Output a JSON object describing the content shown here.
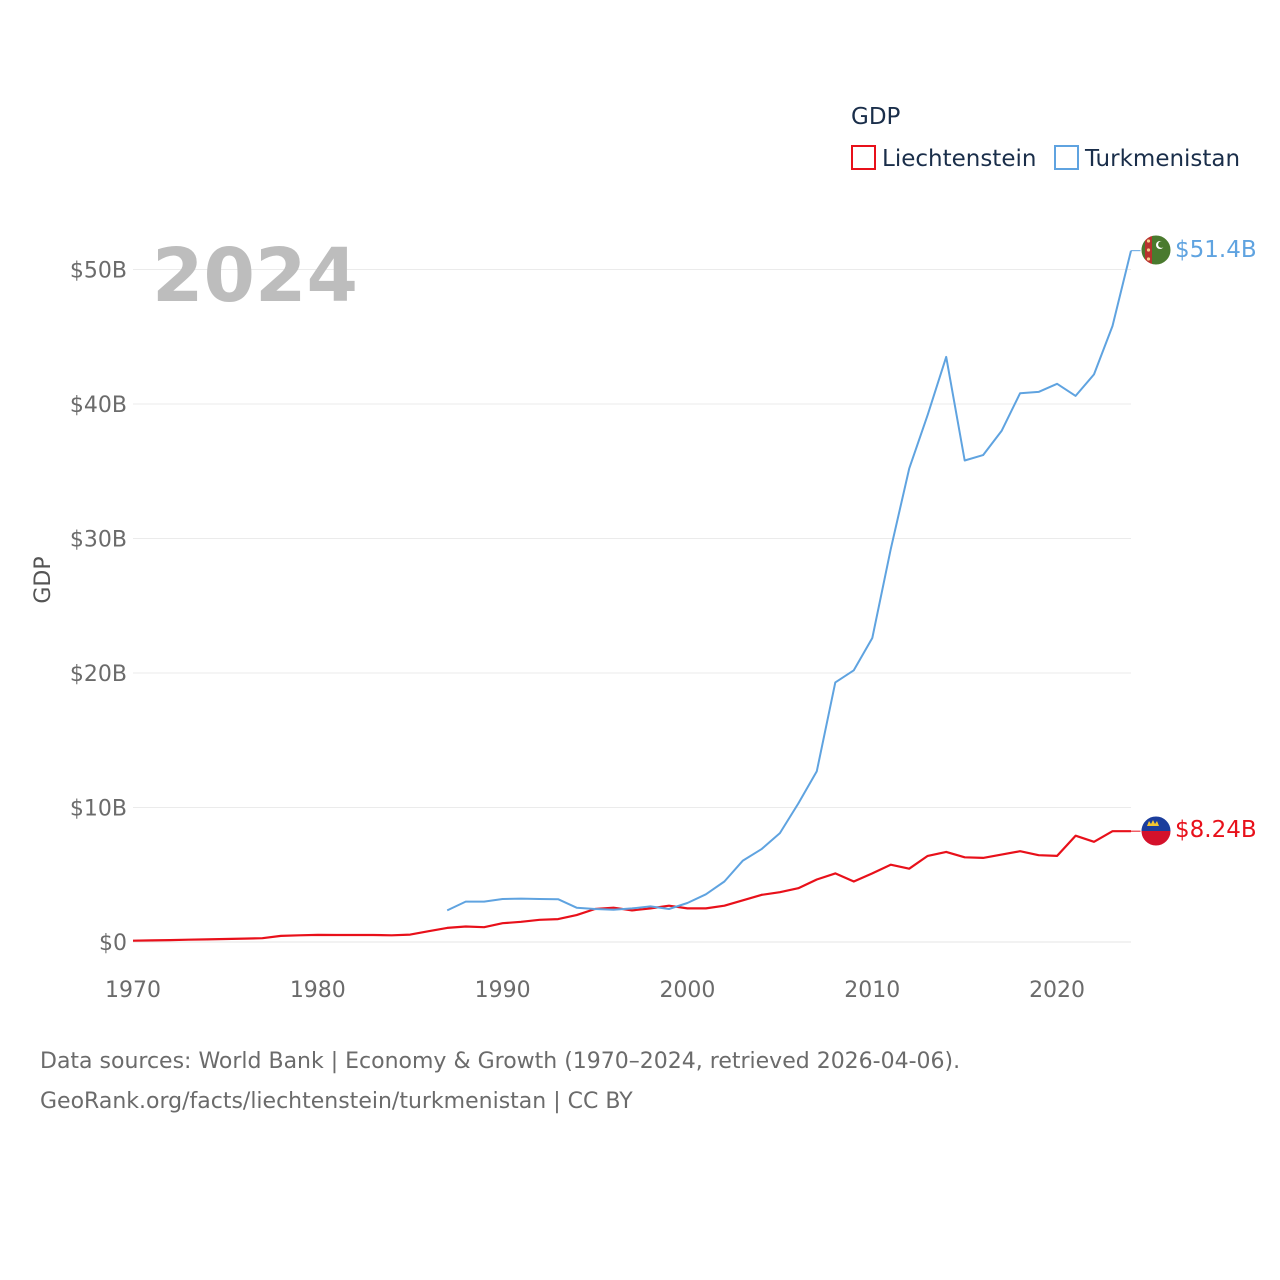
{
  "chart_data": {
    "type": "line",
    "year_label": "2024",
    "ylabel": "GDP",
    "xlabel": "",
    "ylim": [
      0,
      55000000000
    ],
    "xlim": [
      1970,
      2024
    ],
    "y_ticks": [
      {
        "value": 0,
        "label": "$0"
      },
      {
        "value": 10000000000,
        "label": "$10B"
      },
      {
        "value": 20000000000,
        "label": "$20B"
      },
      {
        "value": 30000000000,
        "label": "$30B"
      },
      {
        "value": 40000000000,
        "label": "$40B"
      },
      {
        "value": 50000000000,
        "label": "$50B"
      }
    ],
    "x_ticks": [
      {
        "value": 1970,
        "label": "1970"
      },
      {
        "value": 1980,
        "label": "1980"
      },
      {
        "value": 1990,
        "label": "1990"
      },
      {
        "value": 2000,
        "label": "2000"
      },
      {
        "value": 2010,
        "label": "2010"
      },
      {
        "value": 2020,
        "label": "2020"
      }
    ],
    "legend": {
      "title": "GDP",
      "entries": [
        "Liechtenstein",
        "Turkmenistan"
      ]
    },
    "series": [
      {
        "name": "Liechtenstein",
        "color": "#e8101a",
        "end_label": "$8.24B",
        "flag": "liechtenstein-flag",
        "x": [
          1970,
          1971,
          1972,
          1973,
          1974,
          1975,
          1976,
          1977,
          1978,
          1979,
          1980,
          1981,
          1982,
          1983,
          1984,
          1985,
          1986,
          1987,
          1988,
          1989,
          1990,
          1991,
          1992,
          1993,
          1994,
          1995,
          1996,
          1997,
          1998,
          1999,
          2000,
          2001,
          2002,
          2003,
          2004,
          2005,
          2006,
          2007,
          2008,
          2009,
          2010,
          2011,
          2012,
          2013,
          2014,
          2015,
          2016,
          2017,
          2018,
          2019,
          2020,
          2021,
          2022,
          2023,
          2024
        ],
        "values": [
          100000000.0,
          120000000.0,
          140000000.0,
          170000000.0,
          190000000.0,
          220000000.0,
          250000000.0,
          280000000.0,
          450000000.0,
          500000000.0,
          530000000.0,
          520000000.0,
          520000000.0,
          520000000.0,
          500000000.0,
          550000000.0,
          800000000.0,
          1050000000.0,
          1150000000.0,
          1100000000.0,
          1400000000.0,
          1500000000.0,
          1650000000.0,
          1700000000.0,
          2000000000.0,
          2450000000.0,
          2550000000.0,
          2350000000.0,
          2500000000.0,
          2700000000.0,
          2500000000.0,
          2500000000.0,
          2700000000.0,
          3100000000.0,
          3500000000.0,
          3700000000.0,
          4000000000.0,
          4650000000.0,
          5100000000.0,
          4500000000.0,
          5100000000.0,
          5750000000.0,
          5450000000.0,
          6400000000.0,
          6700000000.0,
          6300000000.0,
          6250000000.0,
          6500000000.0,
          6750000000.0,
          6450000000.0,
          6400000000.0,
          7900000000.0,
          7450000000.0,
          8240000000.0,
          8240000000.0
        ]
      },
      {
        "name": "Turkmenistan",
        "color": "#5fa3e0",
        "end_label": "$51.4B",
        "flag": "turkmenistan-flag",
        "x": [
          1987,
          1988,
          1989,
          1990,
          1991,
          1992,
          1993,
          1994,
          1995,
          1996,
          1997,
          1998,
          1999,
          2000,
          2001,
          2002,
          2003,
          2004,
          2005,
          2006,
          2007,
          2008,
          2009,
          2010,
          2011,
          2012,
          2013,
          2014,
          2015,
          2016,
          2017,
          2018,
          2019,
          2020,
          2021,
          2022,
          2023,
          2024
        ],
        "values": [
          2350000000.0,
          3000000000.0,
          3000000000.0,
          3200000000.0,
          3230000000.0,
          3200000000.0,
          3180000000.0,
          2550000000.0,
          2450000000.0,
          2400000000.0,
          2500000000.0,
          2650000000.0,
          2450000000.0,
          2900000000.0,
          3550000000.0,
          4500000000.0,
          6050000000.0,
          6900000000.0,
          8100000000.0,
          10300000000.0,
          12700000000.0,
          19300000000.0,
          20200000000.0,
          22600000000.0,
          29200000000.0,
          35200000000.0,
          39200000000.0,
          43500000000.0,
          35800000000.0,
          36200000000.0,
          38000000000.0,
          40800000000.0,
          40900000000.0,
          41500000000.0,
          40600000000.0,
          42200000000.0,
          45800000000.0,
          51400000000.0
        ]
      }
    ]
  },
  "source": {
    "line1": "Data sources: World Bank | Economy & Growth (1970–2024, retrieved 2026-04-06).",
    "line2": "GeoRank.org/facts/liechtenstein/turkmenistan | CC BY"
  }
}
